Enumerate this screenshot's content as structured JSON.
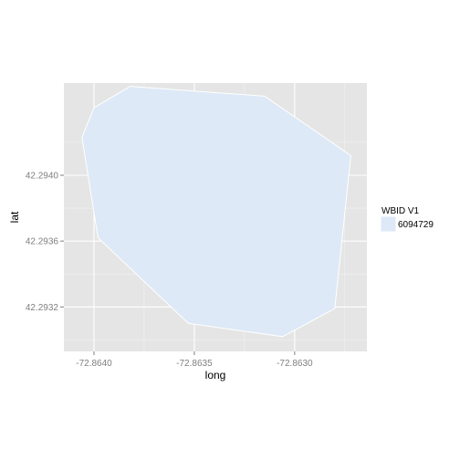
{
  "chart_data": {
    "type": "area",
    "xlabel": "long",
    "ylabel": "lat",
    "xlim": [
      -72.86415,
      -72.86264
    ],
    "ylim": [
      42.29293,
      42.29456
    ],
    "x_ticks": [
      -72.864,
      -72.8635,
      -72.863
    ],
    "x_tick_labels": [
      "-72.8640",
      "-72.8635",
      "-72.8630"
    ],
    "y_ticks": [
      42.2932,
      42.2936,
      42.294
    ],
    "y_tick_labels": [
      "42.2932",
      "42.2936",
      "42.2940"
    ],
    "grid": true,
    "legend": {
      "title": "WBID V1",
      "position": "right",
      "entries": [
        {
          "label": "6094729",
          "fill": "#dde9f6"
        }
      ]
    },
    "polygon": {
      "name": "6094729",
      "fill": "#dde9f6",
      "stroke": "#ffffff",
      "points": [
        {
          "long": -72.86382,
          "lat": 42.29454
        },
        {
          "long": -72.86315,
          "lat": 42.29448
        },
        {
          "long": -72.86272,
          "lat": 42.29412
        },
        {
          "long": -72.8628,
          "lat": 42.29319
        },
        {
          "long": -72.86306,
          "lat": 42.29302
        },
        {
          "long": -72.86353,
          "lat": 42.2931
        },
        {
          "long": -72.86398,
          "lat": 42.29362
        },
        {
          "long": -72.86406,
          "lat": 42.29423
        },
        {
          "long": -72.864,
          "lat": 42.29441
        }
      ]
    }
  },
  "colors": {
    "panel_background": "#e5e5e5",
    "grid_major": "#ffffff",
    "grid_minor": "#f2f2f2",
    "tick_label": "#7f7f7f"
  }
}
